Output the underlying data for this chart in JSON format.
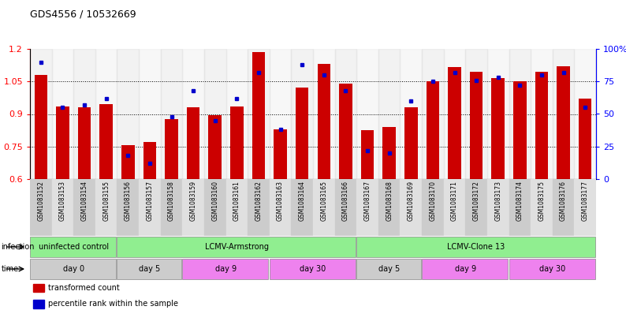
{
  "title": "GDS4556 / 10532669",
  "samples": [
    "GSM1083152",
    "GSM1083153",
    "GSM1083154",
    "GSM1083155",
    "GSM1083156",
    "GSM1083157",
    "GSM1083158",
    "GSM1083159",
    "GSM1083160",
    "GSM1083161",
    "GSM1083162",
    "GSM1083163",
    "GSM1083164",
    "GSM1083165",
    "GSM1083166",
    "GSM1083167",
    "GSM1083168",
    "GSM1083169",
    "GSM1083170",
    "GSM1083171",
    "GSM1083172",
    "GSM1083173",
    "GSM1083174",
    "GSM1083175",
    "GSM1083176",
    "GSM1083177"
  ],
  "transformed_count": [
    1.08,
    0.935,
    0.93,
    0.945,
    0.755,
    0.77,
    0.875,
    0.93,
    0.895,
    0.935,
    1.185,
    0.83,
    1.02,
    1.13,
    1.04,
    0.825,
    0.84,
    0.93,
    1.05,
    1.115,
    1.095,
    1.065,
    1.05,
    1.095,
    1.12,
    0.97
  ],
  "percentile_rank": [
    90,
    55,
    57,
    62,
    18,
    12,
    48,
    68,
    45,
    62,
    82,
    38,
    88,
    80,
    68,
    22,
    20,
    60,
    75,
    82,
    76,
    78,
    72,
    80,
    82,
    55
  ],
  "ylim_left": [
    0.6,
    1.2
  ],
  "ylim_right": [
    0,
    100
  ],
  "yticks_left": [
    0.6,
    0.75,
    0.9,
    1.05,
    1.2
  ],
  "yticks_right": [
    0,
    25,
    50,
    75,
    100
  ],
  "bar_color": "#CC0000",
  "dot_color": "#0000CC",
  "infection_groups": [
    {
      "label": "uninfected control",
      "start": 0,
      "end": 4,
      "color": "#90EE90"
    },
    {
      "label": "LCMV-Armstrong",
      "start": 4,
      "end": 15,
      "color": "#90EE90"
    },
    {
      "label": "LCMV-Clone 13",
      "start": 15,
      "end": 26,
      "color": "#90EE90"
    }
  ],
  "time_groups": [
    {
      "label": "day 0",
      "start": 0,
      "end": 4,
      "color": "#CCCCCC"
    },
    {
      "label": "day 5",
      "start": 4,
      "end": 7,
      "color": "#CCCCCC"
    },
    {
      "label": "day 9",
      "start": 7,
      "end": 11,
      "color": "#EE82EE"
    },
    {
      "label": "day 30",
      "start": 11,
      "end": 15,
      "color": "#EE82EE"
    },
    {
      "label": "day 5",
      "start": 15,
      "end": 18,
      "color": "#CCCCCC"
    },
    {
      "label": "day 9",
      "start": 18,
      "end": 22,
      "color": "#EE82EE"
    },
    {
      "label": "day 30",
      "start": 22,
      "end": 26,
      "color": "#EE82EE"
    }
  ],
  "legend_items": [
    {
      "label": "transformed count",
      "color": "#CC0000"
    },
    {
      "label": "percentile rank within the sample",
      "color": "#0000CC"
    }
  ],
  "col_bg_even": "#CCCCCC",
  "col_bg_odd": "#E0E0E0"
}
